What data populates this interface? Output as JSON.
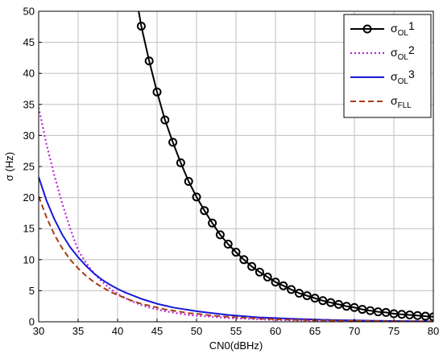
{
  "chart_data": {
    "type": "line",
    "xlabel": "CN0(dBHz)",
    "ylabel": "σ (Hz)",
    "xlim": [
      30,
      80
    ],
    "ylim": [
      0,
      50
    ],
    "xticks": [
      30,
      35,
      40,
      45,
      50,
      55,
      60,
      65,
      70,
      75,
      80
    ],
    "yticks": [
      0,
      5,
      10,
      15,
      20,
      25,
      30,
      35,
      40,
      45,
      50
    ],
    "grid": true,
    "legend_position": "top-right",
    "series": [
      {
        "name": "σOL1",
        "label_main": "σ",
        "label_sub": "OL",
        "label_suffix": "1",
        "color": "#000000",
        "style": "solid-circles",
        "x": [
          43,
          44,
          45,
          46,
          47,
          48,
          49,
          50,
          51,
          52,
          53,
          54,
          55,
          56,
          57,
          58,
          59,
          60,
          61,
          62,
          63,
          64,
          65,
          66,
          67,
          68,
          69,
          70,
          71,
          72,
          73,
          74,
          75,
          76,
          77,
          78,
          79,
          80
        ],
        "y": [
          47.6,
          42.0,
          37.0,
          32.5,
          28.9,
          25.6,
          22.6,
          20.1,
          17.9,
          15.9,
          14.0,
          12.5,
          11.2,
          10.0,
          8.9,
          8.0,
          7.2,
          6.4,
          5.8,
          5.2,
          4.6,
          4.2,
          3.8,
          3.4,
          3.1,
          2.8,
          2.5,
          2.3,
          2.0,
          1.8,
          1.6,
          1.5,
          1.3,
          1.2,
          1.1,
          1.0,
          0.9,
          0.8
        ]
      },
      {
        "name": "σOL2",
        "label_main": "σ",
        "label_sub": "OL",
        "label_suffix": "2",
        "color": "#bb22dd",
        "style": "dotted",
        "x": [
          30,
          31,
          32,
          33,
          34,
          35,
          36,
          37,
          38,
          39,
          40,
          41,
          42,
          43,
          44,
          45,
          46,
          47,
          48,
          49,
          50,
          52,
          54,
          56,
          58,
          60,
          62,
          64,
          66,
          68,
          70,
          72,
          74,
          76,
          78,
          80
        ],
        "y": [
          34.5,
          28.5,
          23.5,
          19.0,
          15.0,
          11.5,
          9.5,
          7.8,
          6.5,
          5.4,
          4.5,
          3.8,
          3.2,
          2.7,
          2.3,
          2.0,
          1.7,
          1.5,
          1.3,
          1.1,
          1.0,
          0.8,
          0.6,
          0.5,
          0.4,
          0.3,
          0.25,
          0.2,
          0.15,
          0.12,
          0.1,
          0.08,
          0.06,
          0.05,
          0.04,
          0.03
        ]
      },
      {
        "name": "σOL3",
        "label_main": "σ",
        "label_sub": "OL",
        "label_suffix": "3",
        "color": "#1818d8",
        "style": "solid",
        "x": [
          30,
          31,
          32,
          33,
          34,
          35,
          36,
          37,
          38,
          39,
          40,
          41,
          42,
          43,
          44,
          45,
          46,
          47,
          48,
          49,
          50,
          52,
          54,
          56,
          58,
          60,
          62,
          64,
          66,
          68,
          70,
          72,
          74,
          76,
          78,
          80
        ],
        "y": [
          23.3,
          19.5,
          16.5,
          14.0,
          12.0,
          10.4,
          9.0,
          7.8,
          6.8,
          6.0,
          5.3,
          4.7,
          4.2,
          3.7,
          3.3,
          2.9,
          2.6,
          2.3,
          2.1,
          1.9,
          1.7,
          1.4,
          1.1,
          0.9,
          0.7,
          0.6,
          0.48,
          0.4,
          0.32,
          0.26,
          0.22,
          0.18,
          0.14,
          0.12,
          0.1,
          0.08
        ]
      },
      {
        "name": "σFLL",
        "label_main": "σ",
        "label_sub": "FLL",
        "label_suffix": "",
        "color": "#a83c14",
        "style": "dashed",
        "x": [
          30,
          31,
          32,
          33,
          34,
          35,
          36,
          37,
          38,
          39,
          40,
          41,
          42,
          43,
          44,
          45,
          46,
          47,
          48,
          49,
          50,
          52,
          54,
          56,
          58,
          60,
          62,
          64,
          66,
          68,
          70,
          72,
          74,
          76,
          78,
          80
        ],
        "y": [
          20.2,
          16.8,
          14.0,
          11.8,
          10.0,
          8.6,
          7.4,
          6.4,
          5.6,
          4.9,
          4.3,
          3.8,
          3.3,
          2.9,
          2.6,
          2.3,
          2.0,
          1.8,
          1.6,
          1.4,
          1.3,
          1.0,
          0.8,
          0.65,
          0.5,
          0.4,
          0.33,
          0.27,
          0.22,
          0.18,
          0.15,
          0.12,
          0.1,
          0.08,
          0.06,
          0.05
        ]
      }
    ]
  }
}
